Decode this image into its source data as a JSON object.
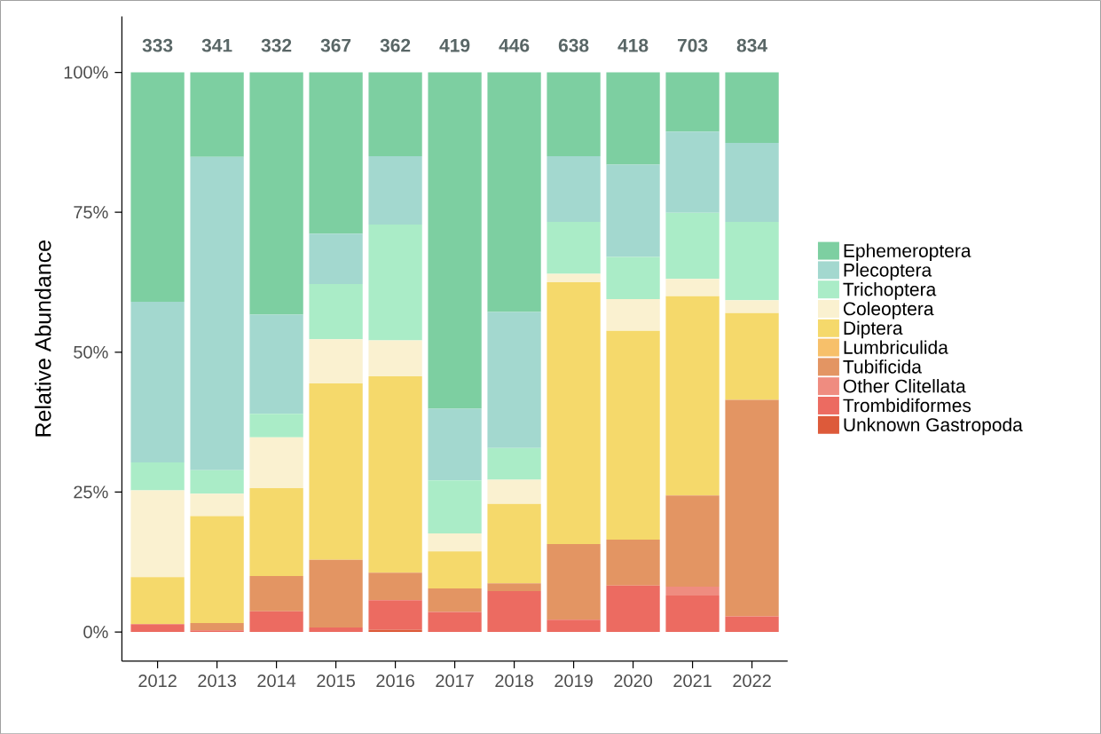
{
  "chart_data": {
    "type": "bar",
    "stacked": true,
    "ylabel": "Relative Abundance",
    "categories": [
      "2012",
      "2013",
      "2014",
      "2015",
      "2016",
      "2017",
      "2018",
      "2019",
      "2020",
      "2021",
      "2022"
    ],
    "series": [
      {
        "name": "Unknown Gastropoda",
        "color": "#dd5a3a",
        "values": [
          0,
          0,
          0,
          0,
          0.4,
          0,
          0,
          0,
          0,
          0,
          0
        ]
      },
      {
        "name": "Trombidiformes",
        "color": "#ec6b61",
        "values": [
          1.4,
          0.3,
          3.7,
          0.8,
          5.3,
          3.6,
          7.3,
          2.2,
          8.3,
          6.5,
          2.8
        ]
      },
      {
        "name": "Other Clitellata",
        "color": "#ef8c80",
        "values": [
          0,
          0,
          0,
          0,
          0,
          0,
          0,
          0,
          0,
          1.6,
          0
        ]
      },
      {
        "name": "Tubificida",
        "color": "#e39563",
        "values": [
          0,
          1.3,
          6.3,
          12.1,
          4.9,
          4.2,
          1.4,
          13.5,
          8.2,
          16.3,
          38.7
        ]
      },
      {
        "name": "Lumbriculida",
        "color": "#f7c06a",
        "values": [
          0,
          0,
          0,
          0,
          0,
          0,
          0,
          0,
          0,
          0,
          0
        ]
      },
      {
        "name": "Diptera",
        "color": "#f5d96b",
        "values": [
          8.4,
          19.1,
          15.7,
          31.5,
          35.1,
          6.6,
          14.2,
          46.8,
          37.3,
          35.6,
          15.5
        ]
      },
      {
        "name": "Coleoptera",
        "color": "#faf1d0",
        "values": [
          15.5,
          4.0,
          9.1,
          7.9,
          6.4,
          3.2,
          4.3,
          1.5,
          5.7,
          3.1,
          2.3
        ]
      },
      {
        "name": "Trichoptera",
        "color": "#aaecc7",
        "values": [
          5.0,
          4.2,
          4.2,
          9.9,
          20.7,
          9.5,
          5.7,
          9.3,
          7.5,
          11.8,
          14.0
        ]
      },
      {
        "name": "Plecoptera",
        "color": "#a3d8cf",
        "values": [
          28.7,
          56.0,
          17.7,
          9.0,
          12.2,
          12.8,
          24.3,
          11.7,
          16.5,
          14.5,
          14.1
        ]
      },
      {
        "name": "Ephemeroptera",
        "color": "#7dcfa1",
        "values": [
          41.0,
          15.1,
          43.3,
          28.8,
          15.0,
          60.1,
          42.8,
          15.0,
          16.5,
          10.6,
          12.6
        ]
      }
    ],
    "ylim": [
      -5.2,
      110
    ],
    "yticks": [
      {
        "value": 0,
        "label": "0%"
      },
      {
        "value": 25,
        "label": "25%"
      },
      {
        "value": 50,
        "label": "50%"
      },
      {
        "value": 75,
        "label": "75%"
      },
      {
        "value": 100,
        "label": "100%"
      }
    ],
    "annotations": [
      "333",
      "341",
      "332",
      "367",
      "362",
      "419",
      "446",
      "638",
      "418",
      "703",
      "834"
    ],
    "legend": "right",
    "grid": false
  }
}
